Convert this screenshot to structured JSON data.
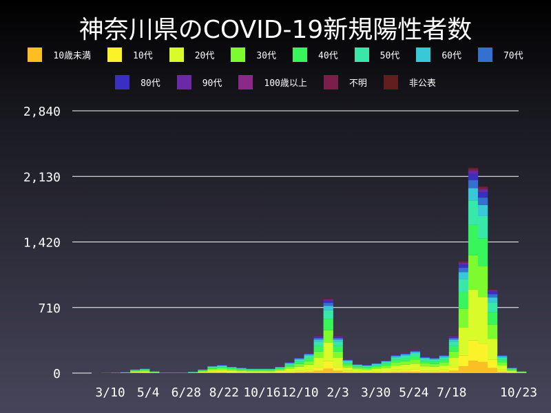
{
  "chart_data": {
    "type": "bar",
    "stacked": true,
    "title": "神奈川県のCOVID-19新規陽性者数",
    "x": [
      "2020-01-15",
      "2020-01-29",
      "2020-02-12",
      "2020-02-26",
      "2020-03-11",
      "2020-03-25",
      "2020-04-08",
      "2020-04-22",
      "2020-05-06",
      "2020-05-20",
      "2020-06-03",
      "2020-06-17",
      "2020-07-01",
      "2020-07-15",
      "2020-07-29",
      "2020-08-12",
      "2020-08-26",
      "2020-09-09",
      "2020-09-23",
      "2020-10-07",
      "2020-10-21",
      "2020-11-04",
      "2020-11-18",
      "2020-12-02",
      "2020-12-16",
      "2020-12-30",
      "2021-01-13",
      "2021-01-27",
      "2021-02-10",
      "2021-02-24",
      "2021-03-10",
      "2021-03-24",
      "2021-04-07",
      "2021-04-21",
      "2021-05-05",
      "2021-05-19",
      "2021-06-02",
      "2021-06-16",
      "2021-06-30",
      "2021-07-14",
      "2021-07-28",
      "2021-08-11",
      "2021-08-25",
      "2021-09-08",
      "2021-09-22",
      "2021-10-06",
      "2021-10-20"
    ],
    "totals": [
      0,
      0,
      0,
      2,
      5,
      10,
      40,
      50,
      20,
      5,
      5,
      5,
      15,
      40,
      80,
      90,
      70,
      60,
      50,
      50,
      50,
      70,
      120,
      170,
      220,
      400,
      800,
      400,
      150,
      100,
      90,
      110,
      140,
      200,
      220,
      250,
      180,
      170,
      200,
      400,
      1200,
      2200,
      2000,
      900,
      200,
      60,
      20
    ],
    "series": [
      {
        "name": "10歳未満",
        "color": "#fbbf24",
        "share": 0.06
      },
      {
        "name": "10代",
        "color": "#fcf22a",
        "share": 0.1
      },
      {
        "name": "20代",
        "color": "#d9fb2a",
        "share": 0.25
      },
      {
        "name": "30代",
        "color": "#7dfb2e",
        "share": 0.17
      },
      {
        "name": "40代",
        "color": "#37f55a",
        "share": 0.15
      },
      {
        "name": "50代",
        "color": "#37e8a8",
        "share": 0.12
      },
      {
        "name": "60代",
        "color": "#38c8d8",
        "share": 0.06
      },
      {
        "name": "70代",
        "color": "#3470d0",
        "share": 0.04
      },
      {
        "name": "80代",
        "color": "#3a2fc0",
        "share": 0.03
      },
      {
        "name": "90代",
        "color": "#6a2aa8",
        "share": 0.015
      },
      {
        "name": "100歳以上",
        "color": "#8c2888",
        "share": 0.001
      },
      {
        "name": "不明",
        "color": "#7a1e4c",
        "share": 0.01
      },
      {
        "name": "非公表",
        "color": "#621e1e",
        "share": 0.005
      }
    ],
    "x_tick_labels": [
      "3/10",
      "5/4",
      "6/28",
      "8/22",
      "10/16",
      "12/10",
      "2/3",
      "3/30",
      "5/24",
      "7/18",
      "10/23"
    ],
    "y_ticks": [
      0,
      710,
      1420,
      2130,
      2840
    ],
    "y_tick_labels": [
      "0",
      "710",
      "1,420",
      "2,130",
      "2,840"
    ],
    "ylim": [
      0,
      2840
    ],
    "grid": "horizontal",
    "legend_placement": "top"
  }
}
